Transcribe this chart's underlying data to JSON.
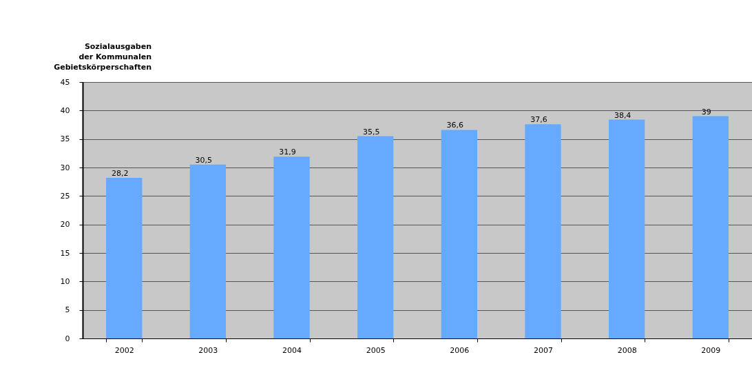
{
  "chart_data": {
    "type": "bar",
    "title": "Sozialausgaben\nder Kommunalen\nGebietskörperschaften",
    "categories": [
      "2002",
      "2003",
      "2004",
      "2005",
      "2006",
      "2007",
      "2008",
      "2009"
    ],
    "values": [
      28.2,
      30.5,
      31.9,
      35.5,
      36.6,
      37.6,
      38.4,
      39
    ],
    "value_labels": [
      "28,2",
      "30,5",
      "31,9",
      "35,5",
      "36,6",
      "37,6",
      "38,4",
      "39"
    ],
    "color": "#66aaff",
    "ylim": [
      0,
      45
    ],
    "yticks": [
      0,
      5,
      10,
      15,
      20,
      25,
      30,
      35,
      40,
      45
    ],
    "grid": "y"
  }
}
